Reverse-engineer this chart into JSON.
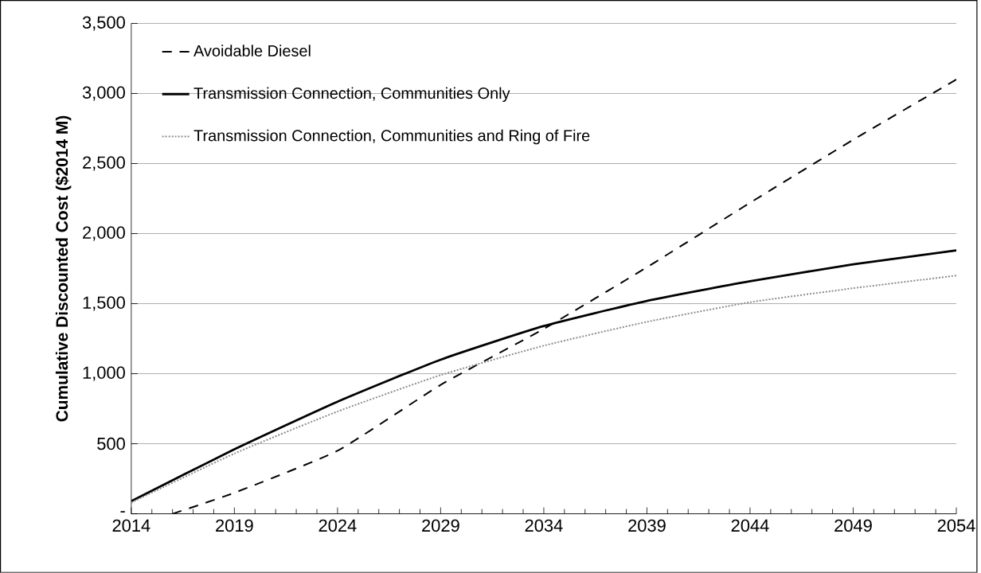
{
  "chart_data": {
    "type": "line",
    "ylabel": "Cumulative Discounted  Cost ($2014 M)",
    "series": [
      {
        "name": "Avoidable Diesel",
        "color": "#000000",
        "line_style": "dashed",
        "x": [
          2016,
          2019,
          2024,
          2029,
          2034,
          2039,
          2044,
          2049,
          2054
        ],
        "values": [
          0,
          150,
          450,
          920,
          1320,
          1760,
          2220,
          2670,
          3100
        ]
      },
      {
        "name": "Transmission Connection, Communities Only",
        "color": "#000000",
        "line_style": "solid",
        "x": [
          2014,
          2019,
          2024,
          2029,
          2034,
          2039,
          2044,
          2049,
          2054
        ],
        "values": [
          90,
          460,
          800,
          1100,
          1340,
          1520,
          1660,
          1780,
          1880
        ]
      },
      {
        "name": "Transmission Connection, Communities and Ring of Fire",
        "color": "#8c8c8c",
        "line_style": "dotted",
        "x": [
          2014,
          2019,
          2024,
          2029,
          2034,
          2039,
          2044,
          2049,
          2054
        ],
        "values": [
          80,
          430,
          730,
          990,
          1200,
          1370,
          1510,
          1610,
          1700
        ]
      }
    ],
    "xlim": [
      2014,
      2054
    ],
    "xticks": [
      2014,
      2019,
      2024,
      2029,
      2034,
      2039,
      2044,
      2049,
      2054
    ],
    "ylim": [
      0,
      3500
    ],
    "yticks": [
      {
        "value": 0,
        "label": "-"
      },
      500,
      {
        "value": 1000,
        "label": "1,000"
      },
      {
        "value": 1500,
        "label": "1,500"
      },
      {
        "value": 2000,
        "label": "2,000"
      },
      {
        "value": 2500,
        "label": "2,500"
      },
      {
        "value": 3000,
        "label": "3,000"
      },
      {
        "value": 3500,
        "label": "3,500"
      }
    ],
    "grid": "y",
    "legend": "top left",
    "marker": "none"
  }
}
